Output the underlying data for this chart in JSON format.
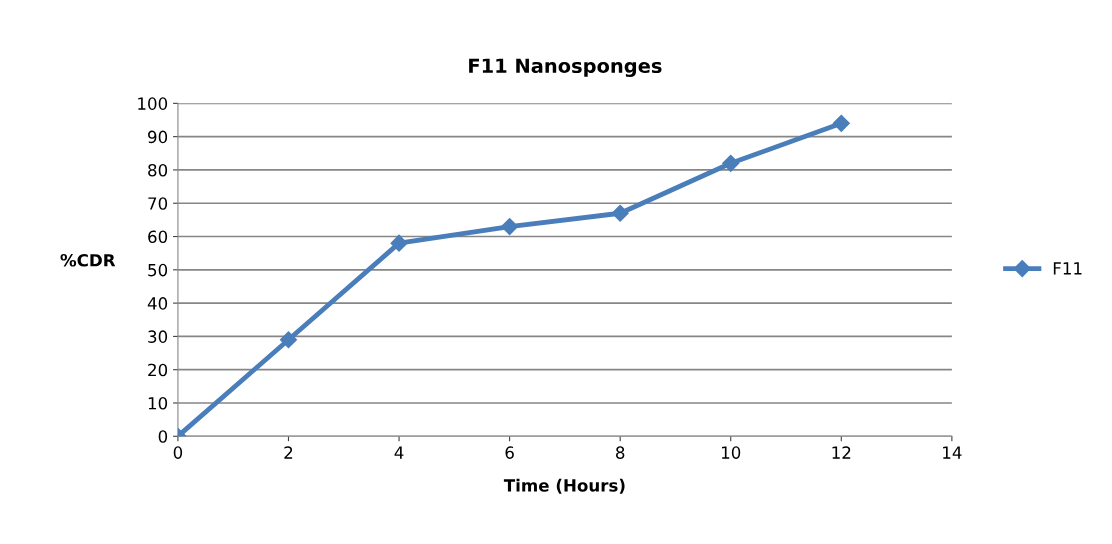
{
  "chart_data": {
    "type": "line",
    "title": "F11 Nanosponges",
    "xlabel": "Time (Hours)",
    "ylabel": "%CDR",
    "x": [
      0,
      2,
      4,
      6,
      8,
      10,
      12
    ],
    "series": [
      {
        "name": "F11",
        "color": "#4a7ebb",
        "values": [
          0,
          29,
          58,
          63,
          67,
          82,
          94
        ]
      }
    ],
    "xlim": [
      0,
      14
    ],
    "xticks": [
      0,
      2,
      4,
      6,
      8,
      10,
      12,
      14
    ],
    "ylim": [
      0,
      100
    ],
    "yticks": [
      0,
      10,
      20,
      30,
      40,
      50,
      60,
      70,
      80,
      90,
      100
    ],
    "grid": "y",
    "legend": "right",
    "marker": "diamond",
    "line_style": "solid"
  }
}
